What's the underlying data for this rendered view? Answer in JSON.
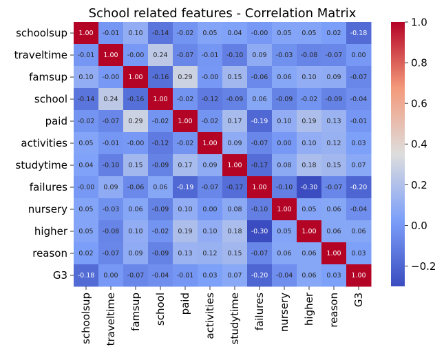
{
  "chart_data": {
    "type": "heatmap",
    "title": "School related features - Correlation Matrix",
    "xlabel": "",
    "ylabel": "",
    "colormap": "coolwarm",
    "vmin": -0.3,
    "vmax": 1.0,
    "colorbar_ticks": [
      "1.0",
      "0.8",
      "0.6",
      "0.4",
      "0.2",
      "0.0",
      "−0.2"
    ],
    "colorbar_tick_values": [
      1.0,
      0.8,
      0.6,
      0.4,
      0.2,
      0.0,
      -0.2
    ],
    "annotations": "2 decimals",
    "labels": [
      "schoolsup",
      "traveltime",
      "famsup",
      "school",
      "paid",
      "activities",
      "studytime",
      "failures",
      "nursery",
      "higher",
      "reason",
      "G3"
    ],
    "values": [
      [
        1.0,
        -0.01,
        0.1,
        -0.14,
        -0.02,
        0.05,
        0.04,
        -0.0,
        0.05,
        0.05,
        0.02,
        -0.18
      ],
      [
        -0.01,
        1.0,
        -0.0,
        0.24,
        -0.07,
        -0.01,
        -0.1,
        0.09,
        -0.03,
        -0.08,
        -0.07,
        0.0
      ],
      [
        0.1,
        -0.0,
        1.0,
        -0.16,
        0.29,
        -0.0,
        0.15,
        -0.06,
        0.06,
        0.1,
        0.09,
        -0.07
      ],
      [
        -0.14,
        0.24,
        -0.16,
        1.0,
        -0.02,
        -0.12,
        -0.09,
        0.06,
        -0.09,
        -0.02,
        -0.09,
        -0.04
      ],
      [
        -0.02,
        -0.07,
        0.29,
        -0.02,
        1.0,
        -0.02,
        0.17,
        -0.19,
        0.1,
        0.19,
        0.13,
        -0.01
      ],
      [
        0.05,
        -0.01,
        -0.0,
        -0.12,
        -0.02,
        1.0,
        0.09,
        -0.07,
        0.0,
        0.1,
        0.12,
        0.03
      ],
      [
        0.04,
        -0.1,
        0.15,
        -0.09,
        0.17,
        0.09,
        1.0,
        -0.17,
        0.08,
        0.18,
        0.15,
        0.07
      ],
      [
        -0.0,
        0.09,
        -0.06,
        0.06,
        -0.19,
        -0.07,
        -0.17,
        1.0,
        -0.1,
        -0.3,
        -0.07,
        -0.2
      ],
      [
        0.05,
        -0.03,
        0.06,
        -0.09,
        0.1,
        0.0,
        0.08,
        -0.1,
        1.0,
        0.05,
        0.06,
        -0.04
      ],
      [
        0.05,
        -0.08,
        0.1,
        -0.02,
        0.19,
        0.1,
        0.18,
        -0.3,
        0.05,
        1.0,
        0.06,
        0.06
      ],
      [
        0.02,
        -0.07,
        0.09,
        -0.09,
        0.13,
        0.12,
        0.15,
        -0.07,
        0.06,
        0.06,
        1.0,
        0.03
      ],
      [
        -0.18,
        0.0,
        -0.07,
        -0.04,
        -0.01,
        0.03,
        0.07,
        -0.2,
        -0.04,
        0.06,
        0.03,
        1.0
      ]
    ],
    "value_labels": [
      [
        "1.00",
        "-0.01",
        "0.10",
        "-0.14",
        "-0.02",
        "0.05",
        "0.04",
        "-0.00",
        "0.05",
        "0.05",
        "0.02",
        "-0.18"
      ],
      [
        "-0.01",
        "1.00",
        "-0.00",
        "0.24",
        "-0.07",
        "-0.01",
        "-0.10",
        "0.09",
        "-0.03",
        "-0.08",
        "-0.07",
        "0.00"
      ],
      [
        "0.10",
        "-0.00",
        "1.00",
        "-0.16",
        "0.29",
        "-0.00",
        "0.15",
        "-0.06",
        "0.06",
        "0.10",
        "0.09",
        "-0.07"
      ],
      [
        "-0.14",
        "0.24",
        "-0.16",
        "1.00",
        "-0.02",
        "-0.12",
        "-0.09",
        "0.06",
        "-0.09",
        "-0.02",
        "-0.09",
        "-0.04"
      ],
      [
        "-0.02",
        "-0.07",
        "0.29",
        "-0.02",
        "1.00",
        "-0.02",
        "0.17",
        "-0.19",
        "0.10",
        "0.19",
        "0.13",
        "-0.01"
      ],
      [
        "0.05",
        "-0.01",
        "-0.00",
        "-0.12",
        "-0.02",
        "1.00",
        "0.09",
        "-0.07",
        "0.00",
        "0.10",
        "0.12",
        "0.03"
      ],
      [
        "0.04",
        "-0.10",
        "0.15",
        "-0.09",
        "0.17",
        "0.09",
        "1.00",
        "-0.17",
        "0.08",
        "0.18",
        "0.15",
        "0.07"
      ],
      [
        "-0.00",
        "0.09",
        "-0.06",
        "0.06",
        "-0.19",
        "-0.07",
        "-0.17",
        "1.00",
        "-0.10",
        "-0.30",
        "-0.07",
        "-0.20"
      ],
      [
        "0.05",
        "-0.03",
        "0.06",
        "-0.09",
        "0.10",
        "0.00",
        "0.08",
        "-0.10",
        "1.00",
        "0.05",
        "0.06",
        "-0.04"
      ],
      [
        "0.05",
        "-0.08",
        "0.10",
        "-0.02",
        "0.19",
        "0.10",
        "0.18",
        "-0.30",
        "0.05",
        "1.00",
        "0.06",
        "0.06"
      ],
      [
        "0.02",
        "-0.07",
        "0.09",
        "-0.09",
        "0.13",
        "0.12",
        "0.15",
        "-0.07",
        "0.06",
        "0.06",
        "1.00",
        "0.03"
      ],
      [
        "-0.18",
        "0.00",
        "-0.07",
        "-0.04",
        "-0.01",
        "0.03",
        "0.07",
        "-0.20",
        "-0.04",
        "0.06",
        "0.03",
        "1.00"
      ]
    ]
  }
}
